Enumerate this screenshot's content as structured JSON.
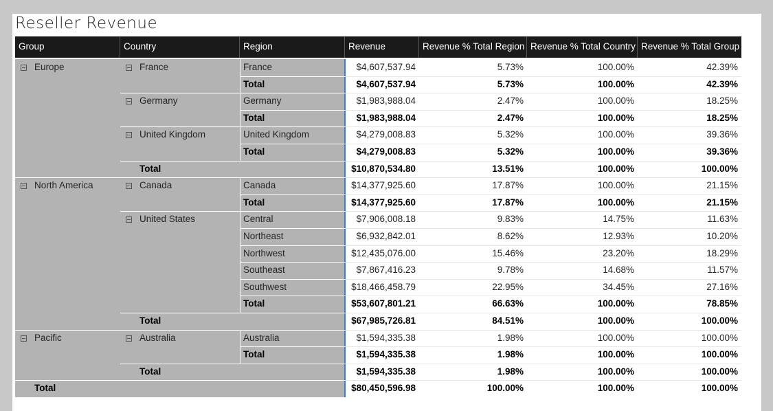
{
  "header": {
    "title": "Reseller Revenue"
  },
  "table": {
    "columns": [
      "Group",
      "Country",
      "Region",
      "Revenue",
      "Revenue % Total Region",
      "Revenue % Total Country",
      "Revenue % Total Group"
    ],
    "rows": [
      {
        "cells": [
          "Europe",
          "France",
          "France",
          "$4,607,537.94",
          "5.73%",
          "100.00%",
          "42.39%"
        ]
      },
      {
        "cells": [
          null,
          null,
          "Total",
          "$4,607,537.94",
          "5.73%",
          "100.00%",
          "42.39%"
        ],
        "bold": true
      },
      {
        "cells": [
          null,
          "Germany",
          "Germany",
          "$1,983,988.04",
          "2.47%",
          "100.00%",
          "18.25%"
        ]
      },
      {
        "cells": [
          null,
          null,
          "Total",
          "$1,983,988.04",
          "2.47%",
          "100.00%",
          "18.25%"
        ],
        "bold": true
      },
      {
        "cells": [
          null,
          "United Kingdom",
          "United Kingdom",
          "$4,279,008.83",
          "5.32%",
          "100.00%",
          "39.36%"
        ]
      },
      {
        "cells": [
          null,
          null,
          "Total",
          "$4,279,008.83",
          "5.32%",
          "100.00%",
          "39.36%"
        ],
        "bold": true
      },
      {
        "cells": [
          null,
          "Total",
          null,
          "$10,870,534.80",
          "13.51%",
          "100.00%",
          "100.00%"
        ],
        "bold": true
      },
      {
        "cells": [
          "North America",
          "Canada",
          "Canada",
          "$14,377,925.60",
          "17.87%",
          "100.00%",
          "21.15%"
        ]
      },
      {
        "cells": [
          null,
          null,
          "Total",
          "$14,377,925.60",
          "17.87%",
          "100.00%",
          "21.15%"
        ],
        "bold": true
      },
      {
        "cells": [
          null,
          "United States",
          "Central",
          "$7,906,008.18",
          "9.83%",
          "14.75%",
          "11.63%"
        ]
      },
      {
        "cells": [
          null,
          null,
          "Northeast",
          "$6,932,842.01",
          "8.62%",
          "12.93%",
          "10.20%"
        ]
      },
      {
        "cells": [
          null,
          null,
          "Northwest",
          "$12,435,076.00",
          "15.46%",
          "23.20%",
          "18.29%"
        ]
      },
      {
        "cells": [
          null,
          null,
          "Southeast",
          "$7,867,416.23",
          "9.78%",
          "14.68%",
          "11.57%"
        ]
      },
      {
        "cells": [
          null,
          null,
          "Southwest",
          "$18,466,458.79",
          "22.95%",
          "34.45%",
          "27.16%"
        ]
      },
      {
        "cells": [
          null,
          null,
          "Total",
          "$53,607,801.21",
          "66.63%",
          "100.00%",
          "78.85%"
        ],
        "bold": true
      },
      {
        "cells": [
          null,
          "Total",
          null,
          "$67,985,726.81",
          "84.51%",
          "100.00%",
          "100.00%"
        ],
        "bold": true
      },
      {
        "cells": [
          "Pacific",
          "Australia",
          "Australia",
          "$1,594,335.38",
          "1.98%",
          "100.00%",
          "100.00%"
        ]
      },
      {
        "cells": [
          null,
          null,
          "Total",
          "$1,594,335.38",
          "1.98%",
          "100.00%",
          "100.00%"
        ],
        "bold": true
      },
      {
        "cells": [
          null,
          "Total",
          null,
          "$1,594,335.38",
          "1.98%",
          "100.00%",
          "100.00%"
        ],
        "bold": true
      },
      {
        "cells": [
          "Total",
          null,
          null,
          "$80,450,596.98",
          "100.00%",
          "100.00%",
          "100.00%"
        ],
        "bold": true
      }
    ]
  }
}
